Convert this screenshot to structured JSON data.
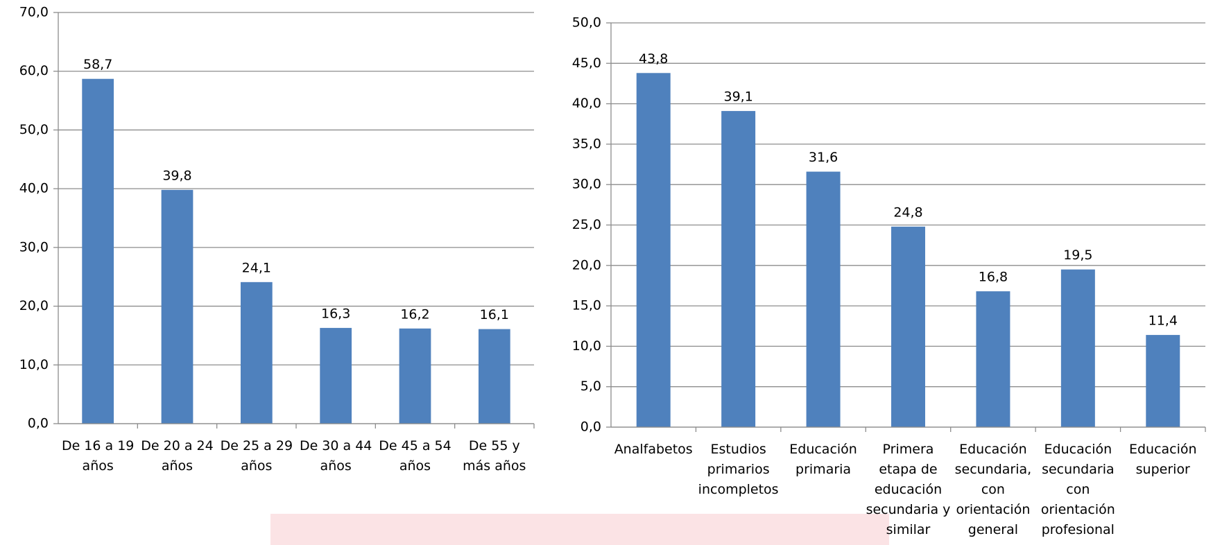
{
  "chart_data": [
    {
      "type": "bar",
      "categories": [
        "De 16 a 19 años",
        "De 20 a 24 años",
        "De 25 a 29 años",
        "De 30 a 44 años",
        "De 45 a 54 años",
        "De 55 y más años"
      ],
      "values": [
        58.7,
        39.8,
        24.1,
        16.3,
        16.2,
        16.1
      ],
      "value_labels": [
        "58,7",
        "39,8",
        "24,1",
        "16,3",
        "16,2",
        "16,1"
      ],
      "color": "#4f81bd",
      "ylim": [
        0,
        70
      ],
      "yticks": [
        {
          "value": 0,
          "label": "0,0"
        },
        {
          "value": 10,
          "label": "10,0"
        },
        {
          "value": 20,
          "label": "20,0"
        },
        {
          "value": 30,
          "label": "30,0"
        },
        {
          "value": 40,
          "label": "40,0"
        },
        {
          "value": 50,
          "label": "50,0"
        },
        {
          "value": 60,
          "label": "60,0"
        },
        {
          "value": 70,
          "label": "70,0"
        }
      ],
      "grid": true
    },
    {
      "type": "bar",
      "categories": [
        "Analfabetos",
        "Estudios primarios incompletos",
        "Educación primaria",
        "Primera etapa de educación secundaria y similar",
        "Educación secundaria, con orientación general",
        "Educación secundaria con orientación profesional",
        "Educación superior"
      ],
      "values": [
        43.8,
        39.1,
        31.6,
        24.8,
        16.8,
        19.5,
        11.4
      ],
      "value_labels": [
        "43,8",
        "39,1",
        "31,6",
        "24,8",
        "16,8",
        "19,5",
        "11,4"
      ],
      "color": "#4f81bd",
      "ylim": [
        0,
        50
      ],
      "yticks": [
        {
          "value": 0,
          "label": "0,0"
        },
        {
          "value": 5,
          "label": "5,0"
        },
        {
          "value": 10,
          "label": "10,0"
        },
        {
          "value": 15,
          "label": "15,0"
        },
        {
          "value": 20,
          "label": "20,0"
        },
        {
          "value": 25,
          "label": "25,0"
        },
        {
          "value": 30,
          "label": "30,0"
        },
        {
          "value": 35,
          "label": "35,0"
        },
        {
          "value": 40,
          "label": "40,0"
        },
        {
          "value": 45,
          "label": "45,0"
        },
        {
          "value": 50,
          "label": "50,0"
        }
      ],
      "grid": true
    }
  ]
}
